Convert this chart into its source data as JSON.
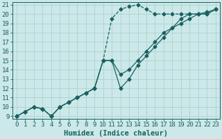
{
  "xlabel": "Humidex (Indice chaleur)",
  "bg_color": "#cce8e8",
  "grid_color": "#a8cece",
  "line_color": "#1a6060",
  "xlim": [
    -0.5,
    23.5
  ],
  "ylim": [
    8.7,
    21.3
  ],
  "xticks": [
    0,
    1,
    2,
    3,
    4,
    5,
    6,
    7,
    8,
    9,
    10,
    11,
    12,
    13,
    14,
    15,
    16,
    17,
    18,
    19,
    20,
    21,
    22,
    23
  ],
  "yticks": [
    9,
    10,
    11,
    12,
    13,
    14,
    15,
    16,
    17,
    18,
    19,
    20,
    21
  ],
  "line1_x": [
    0,
    1,
    2,
    3,
    4,
    5,
    6,
    7,
    8,
    9,
    10,
    11,
    12,
    13,
    14,
    15,
    16,
    17,
    18,
    19,
    20,
    21,
    22,
    23
  ],
  "line1_y": [
    9.0,
    9.5,
    10.0,
    9.8,
    9.0,
    10.0,
    10.5,
    11.0,
    11.5,
    12.0,
    15.0,
    19.5,
    20.5,
    20.8,
    21.0,
    20.5,
    20.0,
    20.0,
    20.0,
    20.0,
    20.0,
    20.0,
    20.0,
    20.5
  ],
  "line2_x": [
    0,
    1,
    2,
    3,
    4,
    5,
    6,
    7,
    8,
    9,
    10,
    11,
    12,
    13,
    14,
    15,
    16,
    17,
    18,
    19,
    20,
    21,
    22,
    23
  ],
  "line2_y": [
    9.0,
    9.5,
    10.0,
    9.8,
    9.0,
    10.0,
    10.5,
    11.0,
    11.5,
    12.0,
    15.0,
    15.0,
    13.5,
    14.0,
    15.0,
    16.0,
    17.0,
    18.0,
    18.5,
    19.5,
    20.0,
    20.0,
    20.2,
    20.5
  ],
  "line3_x": [
    0,
    1,
    2,
    3,
    4,
    5,
    6,
    7,
    8,
    9,
    10,
    11,
    12,
    13,
    14,
    15,
    16,
    17,
    18,
    19,
    20,
    21,
    22,
    23
  ],
  "line3_y": [
    9.0,
    9.5,
    10.0,
    9.8,
    9.0,
    10.0,
    10.5,
    11.0,
    11.5,
    12.0,
    15.0,
    15.0,
    12.0,
    13.0,
    14.5,
    15.5,
    16.5,
    17.5,
    18.5,
    19.0,
    19.5,
    20.0,
    20.0,
    20.5
  ],
  "markersize": 2.5,
  "linewidth": 0.9,
  "tick_fontsize": 6.5,
  "xlabel_fontsize": 7.5
}
